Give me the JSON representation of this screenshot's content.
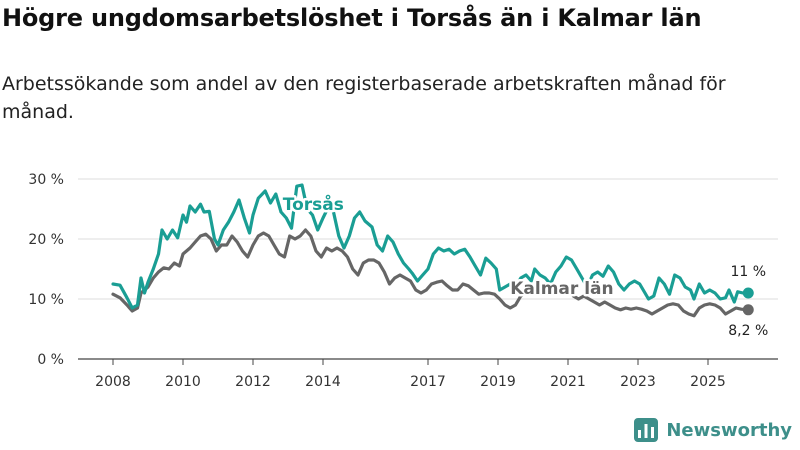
{
  "header": {
    "title": "Högre ungdomsarbetslöshet i Torsås än i Kalmar län",
    "subtitle": "Arbetssökande som andel av den registerbaserade arbetskraften månad för månad."
  },
  "brand": {
    "name": "Newsworthy"
  },
  "chart_data": {
    "type": "line",
    "title": "Högre ungdomsarbetslöshet i Torsås än i Kalmar län",
    "subtitle": "Arbetssökande som andel av den registerbaserade arbetskraften månad för månad.",
    "xlabel": "",
    "ylabel": "",
    "xlim": [
      2007,
      2027
    ],
    "ylim": [
      0,
      30
    ],
    "x_ticks": [
      {
        "value": 2008,
        "label": "2008"
      },
      {
        "value": 2010,
        "label": "2010"
      },
      {
        "value": 2012,
        "label": "2012"
      },
      {
        "value": 2014,
        "label": "2014"
      },
      {
        "value": 2017,
        "label": "2017"
      },
      {
        "value": 2019,
        "label": "2019"
      },
      {
        "value": 2021,
        "label": "2021"
      },
      {
        "value": 2023,
        "label": "2023"
      },
      {
        "value": 2025,
        "label": "2025"
      }
    ],
    "y_ticks": [
      {
        "value": 0,
        "label": "0 %"
      },
      {
        "value": 10,
        "label": "10 %"
      },
      {
        "value": 20,
        "label": "20 %"
      },
      {
        "value": 30,
        "label": "30 %"
      }
    ],
    "grid": true,
    "series": [
      {
        "name": "Torsås",
        "color": "#1a9e94",
        "end_label": "11 %",
        "label_x": 2012.85,
        "label_y": 24.8,
        "points": [
          [
            2008.0,
            12.5
          ],
          [
            2008.2,
            12.3
          ],
          [
            2008.4,
            10.2
          ],
          [
            2008.55,
            8.5
          ],
          [
            2008.7,
            9.0
          ],
          [
            2008.8,
            13.5
          ],
          [
            2008.9,
            11.0
          ],
          [
            2009.0,
            12.8
          ],
          [
            2009.15,
            15.0
          ],
          [
            2009.3,
            17.5
          ],
          [
            2009.4,
            21.5
          ],
          [
            2009.55,
            20.0
          ],
          [
            2009.7,
            21.5
          ],
          [
            2009.85,
            20.2
          ],
          [
            2010.0,
            24.0
          ],
          [
            2010.1,
            22.8
          ],
          [
            2010.2,
            25.5
          ],
          [
            2010.35,
            24.5
          ],
          [
            2010.5,
            25.8
          ],
          [
            2010.6,
            24.5
          ],
          [
            2010.75,
            24.6
          ],
          [
            2010.9,
            20.0
          ],
          [
            2011.0,
            19.0
          ],
          [
            2011.15,
            21.5
          ],
          [
            2011.3,
            22.8
          ],
          [
            2011.45,
            24.5
          ],
          [
            2011.6,
            26.5
          ],
          [
            2011.75,
            23.5
          ],
          [
            2011.9,
            21.0
          ],
          [
            2012.0,
            24.0
          ],
          [
            2012.15,
            26.8
          ],
          [
            2012.35,
            28.0
          ],
          [
            2012.5,
            26.0
          ],
          [
            2012.65,
            27.5
          ],
          [
            2012.8,
            24.5
          ],
          [
            2012.95,
            23.5
          ],
          [
            2013.1,
            21.8
          ],
          [
            2013.25,
            28.8
          ],
          [
            2013.4,
            29.0
          ],
          [
            2013.55,
            25.0
          ],
          [
            2013.7,
            24.0
          ],
          [
            2013.85,
            21.5
          ],
          [
            2014.0,
            23.5
          ],
          [
            2014.15,
            25.3
          ],
          [
            2014.3,
            24.5
          ],
          [
            2014.45,
            20.5
          ],
          [
            2014.6,
            18.5
          ],
          [
            2014.75,
            20.5
          ],
          [
            2014.9,
            23.5
          ],
          [
            2015.05,
            24.5
          ],
          [
            2015.2,
            23.0
          ],
          [
            2015.4,
            22.0
          ],
          [
            2015.55,
            19.0
          ],
          [
            2015.7,
            18.0
          ],
          [
            2015.85,
            20.5
          ],
          [
            2016.0,
            19.5
          ],
          [
            2016.15,
            17.5
          ],
          [
            2016.3,
            16.0
          ],
          [
            2016.45,
            15.0
          ],
          [
            2016.55,
            14.3
          ],
          [
            2016.7,
            13.0
          ],
          [
            2016.85,
            14.0
          ],
          [
            2017.0,
            15.0
          ],
          [
            2017.15,
            17.5
          ],
          [
            2017.3,
            18.5
          ],
          [
            2017.45,
            18.0
          ],
          [
            2017.6,
            18.3
          ],
          [
            2017.75,
            17.5
          ],
          [
            2017.9,
            18.0
          ],
          [
            2018.05,
            18.3
          ],
          [
            2018.2,
            17.0
          ],
          [
            2018.35,
            15.5
          ],
          [
            2018.5,
            14.0
          ],
          [
            2018.65,
            16.8
          ],
          [
            2018.8,
            16.0
          ],
          [
            2018.95,
            15.0
          ],
          [
            2019.05,
            11.5
          ],
          [
            2019.2,
            12.0
          ],
          [
            2019.35,
            12.5
          ],
          [
            2019.5,
            12.0
          ],
          [
            2019.65,
            13.5
          ],
          [
            2019.8,
            14.0
          ],
          [
            2019.95,
            13.0
          ],
          [
            2020.05,
            15.0
          ],
          [
            2020.2,
            14.0
          ],
          [
            2020.35,
            13.5
          ],
          [
            2020.5,
            12.5
          ],
          [
            2020.65,
            14.5
          ],
          [
            2020.8,
            15.5
          ],
          [
            2020.95,
            17.0
          ],
          [
            2021.1,
            16.5
          ],
          [
            2021.25,
            15.0
          ],
          [
            2021.4,
            13.5
          ],
          [
            2021.55,
            12.0
          ],
          [
            2021.7,
            14.0
          ],
          [
            2021.85,
            14.5
          ],
          [
            2022.0,
            13.8
          ],
          [
            2022.15,
            15.5
          ],
          [
            2022.3,
            14.5
          ],
          [
            2022.45,
            12.5
          ],
          [
            2022.6,
            11.5
          ],
          [
            2022.75,
            12.5
          ],
          [
            2022.9,
            13.0
          ],
          [
            2023.05,
            12.5
          ],
          [
            2023.2,
            11.0
          ],
          [
            2023.3,
            10.0
          ],
          [
            2023.45,
            10.5
          ],
          [
            2023.6,
            13.5
          ],
          [
            2023.75,
            12.5
          ],
          [
            2023.9,
            10.8
          ],
          [
            2024.05,
            14.0
          ],
          [
            2024.2,
            13.5
          ],
          [
            2024.35,
            12.0
          ],
          [
            2024.5,
            11.5
          ],
          [
            2024.6,
            10.0
          ],
          [
            2024.75,
            12.5
          ],
          [
            2024.9,
            11.0
          ],
          [
            2025.05,
            11.5
          ],
          [
            2025.2,
            11.0
          ],
          [
            2025.35,
            10.0
          ],
          [
            2025.5,
            10.2
          ],
          [
            2025.6,
            11.5
          ],
          [
            2025.75,
            9.5
          ],
          [
            2025.85,
            11.2
          ],
          [
            2026.0,
            11.0
          ],
          [
            2026.15,
            11.0
          ]
        ]
      },
      {
        "name": "Kalmar län",
        "color": "#666666",
        "end_label": "8,2 %",
        "label_x": 2019.35,
        "label_y": 10.8,
        "points": [
          [
            2008.0,
            10.8
          ],
          [
            2008.2,
            10.2
          ],
          [
            2008.4,
            9.0
          ],
          [
            2008.55,
            8.0
          ],
          [
            2008.7,
            8.5
          ],
          [
            2008.8,
            11.0
          ],
          [
            2008.9,
            11.5
          ],
          [
            2009.0,
            12.0
          ],
          [
            2009.15,
            13.5
          ],
          [
            2009.3,
            14.5
          ],
          [
            2009.45,
            15.2
          ],
          [
            2009.6,
            15.0
          ],
          [
            2009.75,
            16.0
          ],
          [
            2009.9,
            15.5
          ],
          [
            2010.0,
            17.5
          ],
          [
            2010.2,
            18.5
          ],
          [
            2010.35,
            19.5
          ],
          [
            2010.5,
            20.5
          ],
          [
            2010.65,
            20.8
          ],
          [
            2010.8,
            20.0
          ],
          [
            2010.95,
            18.0
          ],
          [
            2011.1,
            19.0
          ],
          [
            2011.25,
            19.0
          ],
          [
            2011.4,
            20.5
          ],
          [
            2011.55,
            19.5
          ],
          [
            2011.7,
            18.0
          ],
          [
            2011.85,
            17.0
          ],
          [
            2012.0,
            19.0
          ],
          [
            2012.15,
            20.5
          ],
          [
            2012.3,
            21.0
          ],
          [
            2012.45,
            20.5
          ],
          [
            2012.6,
            19.0
          ],
          [
            2012.75,
            17.5
          ],
          [
            2012.9,
            17.0
          ],
          [
            2013.05,
            20.5
          ],
          [
            2013.2,
            20.0
          ],
          [
            2013.35,
            20.5
          ],
          [
            2013.5,
            21.5
          ],
          [
            2013.65,
            20.5
          ],
          [
            2013.8,
            18.0
          ],
          [
            2013.95,
            17.0
          ],
          [
            2014.1,
            18.5
          ],
          [
            2014.25,
            18.0
          ],
          [
            2014.4,
            18.5
          ],
          [
            2014.55,
            18.0
          ],
          [
            2014.7,
            17.0
          ],
          [
            2014.85,
            15.0
          ],
          [
            2015.0,
            14.0
          ],
          [
            2015.15,
            16.0
          ],
          [
            2015.3,
            16.5
          ],
          [
            2015.45,
            16.5
          ],
          [
            2015.6,
            16.0
          ],
          [
            2015.75,
            14.5
          ],
          [
            2015.9,
            12.5
          ],
          [
            2016.05,
            13.5
          ],
          [
            2016.2,
            14.0
          ],
          [
            2016.35,
            13.5
          ],
          [
            2016.5,
            13.0
          ],
          [
            2016.65,
            11.5
          ],
          [
            2016.8,
            11.0
          ],
          [
            2016.95,
            11.5
          ],
          [
            2017.1,
            12.5
          ],
          [
            2017.25,
            12.8
          ],
          [
            2017.4,
            13.0
          ],
          [
            2017.55,
            12.2
          ],
          [
            2017.7,
            11.5
          ],
          [
            2017.85,
            11.5
          ],
          [
            2018.0,
            12.5
          ],
          [
            2018.15,
            12.2
          ],
          [
            2018.3,
            11.5
          ],
          [
            2018.45,
            10.8
          ],
          [
            2018.6,
            11.0
          ],
          [
            2018.75,
            11.0
          ],
          [
            2018.9,
            10.8
          ],
          [
            2019.05,
            10.0
          ],
          [
            2019.2,
            9.0
          ],
          [
            2019.35,
            8.5
          ],
          [
            2019.5,
            9.0
          ],
          [
            2019.65,
            10.5
          ],
          [
            2019.8,
            11.0
          ],
          [
            2019.95,
            11.0
          ],
          [
            2020.1,
            12.0
          ],
          [
            2020.25,
            11.5
          ],
          [
            2020.4,
            11.8
          ],
          [
            2020.55,
            11.5
          ],
          [
            2020.7,
            11.0
          ],
          [
            2020.85,
            11.5
          ],
          [
            2021.0,
            11.5
          ],
          [
            2021.15,
            10.5
          ],
          [
            2021.3,
            10.0
          ],
          [
            2021.45,
            10.5
          ],
          [
            2021.6,
            10.0
          ],
          [
            2021.75,
            9.5
          ],
          [
            2021.9,
            9.0
          ],
          [
            2022.05,
            9.5
          ],
          [
            2022.2,
            9.0
          ],
          [
            2022.35,
            8.5
          ],
          [
            2022.5,
            8.2
          ],
          [
            2022.65,
            8.5
          ],
          [
            2022.8,
            8.3
          ],
          [
            2022.95,
            8.5
          ],
          [
            2023.1,
            8.3
          ],
          [
            2023.25,
            8.0
          ],
          [
            2023.4,
            7.5
          ],
          [
            2023.55,
            8.0
          ],
          [
            2023.7,
            8.5
          ],
          [
            2023.85,
            9.0
          ],
          [
            2024.0,
            9.2
          ],
          [
            2024.15,
            9.0
          ],
          [
            2024.3,
            8.0
          ],
          [
            2024.45,
            7.5
          ],
          [
            2024.6,
            7.2
          ],
          [
            2024.75,
            8.5
          ],
          [
            2024.9,
            9.0
          ],
          [
            2025.05,
            9.2
          ],
          [
            2025.2,
            9.0
          ],
          [
            2025.35,
            8.5
          ],
          [
            2025.5,
            7.5
          ],
          [
            2025.65,
            8.0
          ],
          [
            2025.8,
            8.5
          ],
          [
            2025.95,
            8.3
          ],
          [
            2026.15,
            8.2
          ]
        ]
      }
    ]
  }
}
